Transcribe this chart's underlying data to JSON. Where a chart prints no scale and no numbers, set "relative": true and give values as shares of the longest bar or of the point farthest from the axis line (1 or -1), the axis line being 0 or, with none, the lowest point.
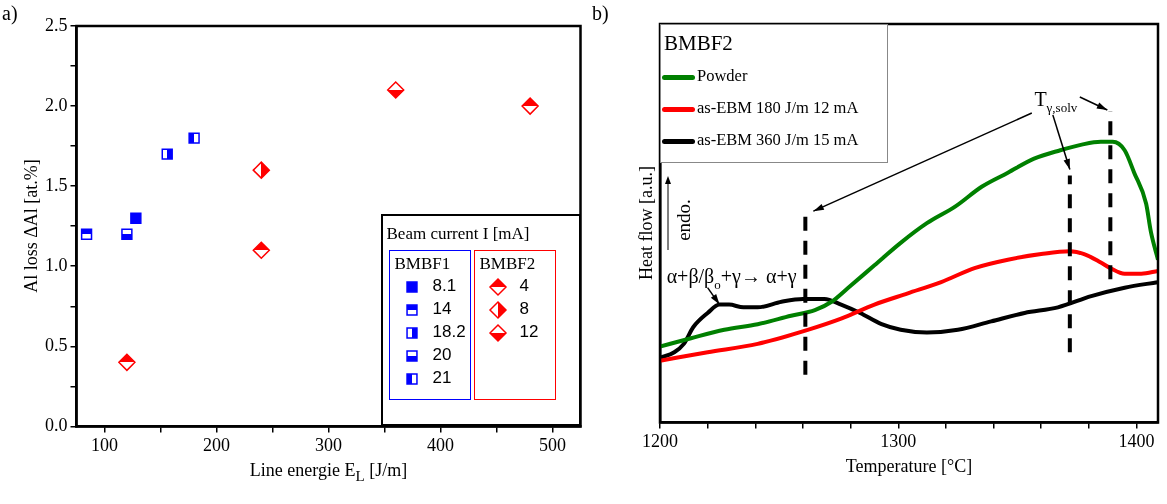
{
  "chart_data": [
    {
      "type": "scatter",
      "title": "a)",
      "xlabel": "Line energie E$_{L}$ [J/m]",
      "ylabel": "Al loss ΔAl [at.%]",
      "legend_title": "Beam current I [mA]",
      "legend": "bottom right",
      "grid": false,
      "annotations": [
        "BMBF1",
        "BMBF2"
      ],
      "xlim": [
        75,
        525
      ],
      "xticks": [
        100,
        {
          "value": 150,
          "label": null
        },
        200,
        {
          "value": 250,
          "label": null
        },
        300,
        {
          "value": 350,
          "label": null
        },
        400,
        {
          "value": 450,
          "label": null
        },
        500
      ],
      "ylim": [
        0,
        2.5
      ],
      "yticks": [
        {
          "value": 0,
          "label": "0.0"
        },
        {
          "value": 0.25,
          "label": null
        },
        {
          "value": 0.5,
          "label": "0.5"
        },
        {
          "value": 0.75,
          "label": null
        },
        {
          "value": 1,
          "label": "1.0"
        },
        {
          "value": 1.25,
          "label": null
        },
        {
          "value": 1.5,
          "label": "1.5"
        },
        {
          "value": 1.75,
          "label": null
        },
        {
          "value": 2,
          "label": "2.0"
        },
        {
          "value": 2.25,
          "label": null
        },
        {
          "value": 2.5,
          "label": "2.5"
        }
      ],
      "series": [
        {
          "name": "8.1",
          "color": "#0000ff",
          "marker": "square",
          "x": [
            128
          ],
          "values": [
            1.3
          ]
        },
        {
          "name": "14",
          "color": "#0000ff",
          "marker": "square",
          "x": [
            84
          ],
          "values": [
            1.2
          ]
        },
        {
          "name": "18.2",
          "color": "#0000ff",
          "marker": "square",
          "x": [
            156
          ],
          "values": [
            1.7
          ]
        },
        {
          "name": "20",
          "color": "#0000ff",
          "marker": "square",
          "x": [
            120
          ],
          "values": [
            1.2
          ]
        },
        {
          "name": "21",
          "color": "#0000ff",
          "marker": "square",
          "x": [
            180
          ],
          "values": [
            1.8
          ]
        },
        {
          "name": "4",
          "color": "#ff0000",
          "marker": "diamond",
          "x": [
            120,
            240,
            480
          ],
          "values": [
            0.4,
            1.1,
            2.0
          ]
        },
        {
          "name": "8",
          "color": "#ff0000",
          "marker": "diamond",
          "x": [
            240
          ],
          "values": [
            1.6
          ]
        },
        {
          "name": "12",
          "color": "#ff0000",
          "marker": "diamond",
          "x": [
            360
          ],
          "values": [
            2.1
          ]
        }
      ]
    },
    {
      "type": "line",
      "title": "b)",
      "xlabel": "Temperature [°C]",
      "ylabel": "Heat flow [a.u.]",
      "legend_title": "BMBF2",
      "legend": "top left",
      "relative": true,
      "marker": "none",
      "grid": false,
      "xlim": [
        1200,
        1409
      ],
      "xticks": [
        1200,
        {
          "value": 1220,
          "label": null
        },
        {
          "value": 1240,
          "label": null
        },
        {
          "value": 1260,
          "label": null
        },
        {
          "value": 1280,
          "label": null
        },
        1300,
        {
          "value": 1320,
          "label": null
        },
        {
          "value": 1340,
          "label": null
        },
        {
          "value": 1360,
          "label": null
        },
        {
          "value": 1380,
          "label": null
        },
        1400
      ],
      "ref_lines": [
        {
          "axis": "x",
          "value": 1261,
          "color": "#000000",
          "line_style": "dashed"
        },
        {
          "axis": "x",
          "value": 1372,
          "color": "#000000",
          "line_style": "dashed"
        },
        {
          "axis": "x",
          "value": 1389,
          "color": "#000000",
          "line_style": "dashed"
        }
      ],
      "annotations": [
        {
          "text": "α+β/β$_{o}$+γ→ α+γ",
          "x": 1225,
          "y": 0.42
        },
        "T$_{γ,solv}$",
        "endo."
      ],
      "series": [
        {
          "name": "Powder",
          "color": "#008000",
          "x": [
            1200,
            1213,
            1227,
            1241,
            1255,
            1265,
            1272,
            1279,
            1290,
            1301,
            1312,
            1324,
            1335,
            1346,
            1357,
            1368,
            1377,
            1385,
            1390,
            1395,
            1399,
            1404,
            1406,
            1409
          ],
          "values": [
            0.27,
            0.3,
            0.33,
            0.35,
            0.38,
            0.4,
            0.43,
            0.48,
            0.56,
            0.64,
            0.71,
            0.77,
            0.84,
            0.89,
            0.94,
            0.97,
            0.99,
            1,
            1,
            0.97,
            0.89,
            0.78,
            0.68,
            0.58
          ]
        },
        {
          "name": "as-EBM 180 J/m 12 mA",
          "color": "#ff0000",
          "x": [
            1200,
            1220,
            1241,
            1262,
            1276,
            1290,
            1304,
            1318,
            1332,
            1346,
            1360,
            1372,
            1378,
            1385,
            1389,
            1395,
            1402,
            1409
          ],
          "values": [
            0.22,
            0.25,
            0.28,
            0.33,
            0.37,
            0.42,
            0.46,
            0.5,
            0.55,
            0.58,
            0.6,
            0.61,
            0.6,
            0.57,
            0.55,
            0.53,
            0.53,
            0.54
          ]
        },
        {
          "name": "as-EBM 360 J/m 15 mA",
          "color": "#000000",
          "x": [
            1200,
            1206,
            1210,
            1214,
            1220,
            1225,
            1229,
            1235,
            1241,
            1251,
            1260,
            1269,
            1276,
            1284,
            1293,
            1301,
            1312,
            1325,
            1339,
            1353,
            1367,
            1381,
            1395,
            1409
          ],
          "values": [
            0.23,
            0.25,
            0.28,
            0.34,
            0.39,
            0.42,
            0.42,
            0.41,
            0.41,
            0.43,
            0.44,
            0.44,
            0.42,
            0.39,
            0.35,
            0.33,
            0.32,
            0.33,
            0.36,
            0.39,
            0.41,
            0.45,
            0.48,
            0.5
          ]
        }
      ]
    }
  ]
}
